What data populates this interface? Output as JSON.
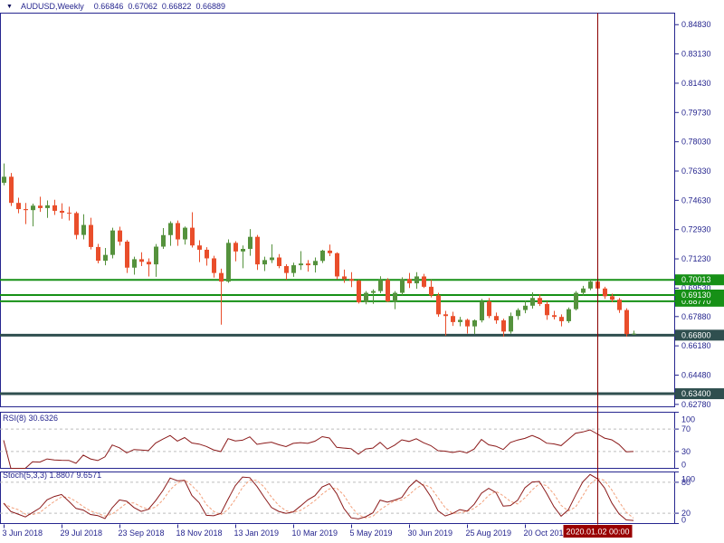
{
  "title_bar": {
    "symbol_period": "AUDUSD,Weekly",
    "open": "0.66846",
    "high": "0.67062",
    "low": "0.66822",
    "close": "0.66889"
  },
  "colors": {
    "background": "#ffffff",
    "frame": "#26268f",
    "text": "#26268f",
    "bull_candle": "#55923d",
    "bear_candle": "#e94e2b",
    "hline_green": "#169016",
    "hline_dark": "#2f4f4f",
    "indicator_line": "#8b1a1a",
    "stoch_signal": "#f2a07b",
    "level_dash": "#bdbdbd",
    "crosshair": "#8b0000",
    "time_tag_bg": "#990000",
    "tag_text": "#ffffff"
  },
  "chart_data": {
    "type": "candlestick",
    "symbol": "AUDUSD",
    "timeframe": "Weekly",
    "title": "AUDUSD,Weekly 0.66846 0.67062 0.66822 0.66889",
    "price_range": {
      "top": 0.855,
      "bottom": 0.6264
    },
    "price_axis_labels": [
      "0.84830",
      "0.83130",
      "0.81430",
      "0.79730",
      "0.78030",
      "0.76330",
      "0.74630",
      "0.72930",
      "0.71230",
      "0.69530",
      "0.67880",
      "0.66180",
      "0.64480",
      "0.62780"
    ],
    "x_ticks": [
      {
        "index": 0,
        "label": "3 Jun 2018"
      },
      {
        "index": 8,
        "label": "29 Jul 2018"
      },
      {
        "index": 16,
        "label": "23 Sep 2018"
      },
      {
        "index": 24,
        "label": "18 Nov 2018"
      },
      {
        "index": 32,
        "label": "13 Jan 2019"
      },
      {
        "index": 40,
        "label": "10 Mar 2019"
      },
      {
        "index": 48,
        "label": "5 May 2019"
      },
      {
        "index": 56,
        "label": "30 Jun 2019"
      },
      {
        "index": 64,
        "label": "25 Aug 2019"
      },
      {
        "index": 72,
        "label": "20 Oct 2019"
      }
    ],
    "hlines": [
      {
        "price": 0.70013,
        "label": "0.70013",
        "style": "green"
      },
      {
        "price": 0.6913,
        "label": "0.69130",
        "style": "green"
      },
      {
        "price": 0.6877,
        "label": "0.68770",
        "style": "green"
      },
      {
        "price": 0.668,
        "label": "0.66800",
        "style": "dark"
      },
      {
        "price": 0.634,
        "label": "0.63400",
        "style": "dark"
      }
    ],
    "vline": {
      "index": 82,
      "label": "2020.01.02 00:00"
    },
    "candles": [
      [
        0.7565,
        0.7677,
        0.755,
        0.76
      ],
      [
        0.76,
        0.7622,
        0.743,
        0.7448
      ],
      [
        0.7448,
        0.7478,
        0.7388,
        0.7412
      ],
      [
        0.7412,
        0.7448,
        0.7325,
        0.7406
      ],
      [
        0.7406,
        0.7444,
        0.7312,
        0.7432
      ],
      [
        0.7432,
        0.7484,
        0.7396,
        0.7418
      ],
      [
        0.7418,
        0.7462,
        0.7361,
        0.7434
      ],
      [
        0.7434,
        0.7466,
        0.7378,
        0.7402
      ],
      [
        0.7402,
        0.7446,
        0.7356,
        0.7391
      ],
      [
        0.7391,
        0.7426,
        0.7346,
        0.7389
      ],
      [
        0.7389,
        0.7398,
        0.7237,
        0.7262
      ],
      [
        0.7262,
        0.7382,
        0.7236,
        0.732
      ],
      [
        0.732,
        0.7362,
        0.7178,
        0.7192
      ],
      [
        0.7192,
        0.721,
        0.7097,
        0.7112
      ],
      [
        0.7112,
        0.7186,
        0.7086,
        0.7146
      ],
      [
        0.7146,
        0.7304,
        0.7126,
        0.7288
      ],
      [
        0.7288,
        0.731,
        0.72,
        0.7223
      ],
      [
        0.7223,
        0.7232,
        0.7041,
        0.7072
      ],
      [
        0.7072,
        0.7136,
        0.7031,
        0.7121
      ],
      [
        0.7121,
        0.7161,
        0.7081,
        0.7106
      ],
      [
        0.7106,
        0.7126,
        0.7021,
        0.7091
      ],
      [
        0.7091,
        0.7209,
        0.7019,
        0.7194
      ],
      [
        0.7194,
        0.7302,
        0.7181,
        0.7261
      ],
      [
        0.7261,
        0.7341,
        0.7199,
        0.7331
      ],
      [
        0.7331,
        0.7346,
        0.7199,
        0.7236
      ],
      [
        0.7236,
        0.7311,
        0.7206,
        0.7304
      ],
      [
        0.7304,
        0.7394,
        0.7189,
        0.7201
      ],
      [
        0.7201,
        0.7231,
        0.7104,
        0.7176
      ],
      [
        0.7176,
        0.7191,
        0.7084,
        0.7126
      ],
      [
        0.7126,
        0.7141,
        0.7014,
        0.7041
      ],
      [
        0.7041,
        0.7066,
        0.6741,
        0.6991
      ],
      [
        0.6991,
        0.7236,
        0.6984,
        0.7216
      ],
      [
        0.7216,
        0.7226,
        0.7109,
        0.7166
      ],
      [
        0.7166,
        0.7201,
        0.7069,
        0.7181
      ],
      [
        0.7181,
        0.7296,
        0.7141,
        0.7251
      ],
      [
        0.7251,
        0.7262,
        0.7059,
        0.7091
      ],
      [
        0.7091,
        0.7136,
        0.7052,
        0.7116
      ],
      [
        0.7116,
        0.7207,
        0.7099,
        0.7131
      ],
      [
        0.7131,
        0.7151,
        0.7069,
        0.7081
      ],
      [
        0.7081,
        0.7092,
        0.7002,
        0.7041
      ],
      [
        0.7041,
        0.7101,
        0.7019,
        0.7086
      ],
      [
        0.7086,
        0.7168,
        0.7059,
        0.7096
      ],
      [
        0.7096,
        0.7116,
        0.7049,
        0.7086
      ],
      [
        0.7086,
        0.7131,
        0.7044,
        0.7111
      ],
      [
        0.7111,
        0.7176,
        0.7099,
        0.7171
      ],
      [
        0.7171,
        0.7206,
        0.7139,
        0.7156
      ],
      [
        0.7156,
        0.7161,
        0.7004,
        0.7021
      ],
      [
        0.7021,
        0.7061,
        0.6984,
        0.7006
      ],
      [
        0.7006,
        0.7046,
        0.6959,
        0.6996
      ],
      [
        0.6996,
        0.7001,
        0.6864,
        0.6871
      ],
      [
        0.6871,
        0.6936,
        0.6859,
        0.6926
      ],
      [
        0.6926,
        0.6946,
        0.6862,
        0.6936
      ],
      [
        0.6936,
        0.7022,
        0.6924,
        0.7001
      ],
      [
        0.7001,
        0.7011,
        0.6872,
        0.6876
      ],
      [
        0.6876,
        0.6936,
        0.6831,
        0.6926
      ],
      [
        0.6926,
        0.7016,
        0.6911,
        0.7006
      ],
      [
        0.7006,
        0.7041,
        0.6954,
        0.6981
      ],
      [
        0.6981,
        0.7046,
        0.6949,
        0.7021
      ],
      [
        0.7021,
        0.7036,
        0.6954,
        0.6961
      ],
      [
        0.6961,
        0.7001,
        0.6899,
        0.6911
      ],
      [
        0.6911,
        0.6926,
        0.6787,
        0.6801
      ],
      [
        0.6801,
        0.6821,
        0.6677,
        0.6791
      ],
      [
        0.6791,
        0.6816,
        0.6734,
        0.6756
      ],
      [
        0.6756,
        0.6786,
        0.6732,
        0.6769
      ],
      [
        0.6769,
        0.6776,
        0.6689,
        0.6731
      ],
      [
        0.6731,
        0.6771,
        0.6686,
        0.6766
      ],
      [
        0.6766,
        0.6891,
        0.6754,
        0.6876
      ],
      [
        0.6876,
        0.6896,
        0.6779,
        0.6791
      ],
      [
        0.6791,
        0.6811,
        0.6746,
        0.6766
      ],
      [
        0.6766,
        0.6776,
        0.6671,
        0.6701
      ],
      [
        0.6701,
        0.6811,
        0.6689,
        0.6791
      ],
      [
        0.6791,
        0.6836,
        0.6769,
        0.6826
      ],
      [
        0.6826,
        0.6881,
        0.6807,
        0.6851
      ],
      [
        0.6851,
        0.6929,
        0.6834,
        0.6896
      ],
      [
        0.6896,
        0.6916,
        0.6849,
        0.6861
      ],
      [
        0.6861,
        0.6876,
        0.6769,
        0.6796
      ],
      [
        0.6796,
        0.6821,
        0.6771,
        0.6786
      ],
      [
        0.6786,
        0.6801,
        0.6731,
        0.6761
      ],
      [
        0.6761,
        0.6841,
        0.6751,
        0.6831
      ],
      [
        0.6831,
        0.6936,
        0.6824,
        0.6926
      ],
      [
        0.6926,
        0.6966,
        0.6909,
        0.6951
      ],
      [
        0.6951,
        0.7001,
        0.6941,
        0.6991
      ],
      [
        0.6991,
        0.7032,
        0.6929,
        0.6951
      ],
      [
        0.6951,
        0.6961,
        0.6891,
        0.6906
      ],
      [
        0.6906,
        0.6921,
        0.6871,
        0.6886
      ],
      [
        0.6886,
        0.6896,
        0.6809,
        0.6826
      ],
      [
        0.6826,
        0.6836,
        0.6671,
        0.6686
      ],
      [
        0.66846,
        0.67062,
        0.66822,
        0.66889
      ]
    ],
    "indicators": [
      {
        "name": "RSI",
        "params": [
          8
        ],
        "label": "RSI(8) 30.6326",
        "current": "30.6326",
        "range": [
          0,
          100
        ],
        "levels": [
          70,
          30
        ],
        "scale_labels": [
          "100",
          "70",
          "30",
          "0"
        ]
      },
      {
        "name": "Stochastic",
        "params": [
          5,
          3,
          3
        ],
        "label": "Stoch(5,3,3) 1.8807 9.6571",
        "current_main": "1.8807",
        "current_signal": "9.6571",
        "range": [
          0,
          100
        ],
        "levels": [
          80,
          20
        ],
        "scale_labels": [
          "100",
          "80",
          "20",
          "0"
        ]
      }
    ],
    "legend_position": "none",
    "grid": false
  }
}
